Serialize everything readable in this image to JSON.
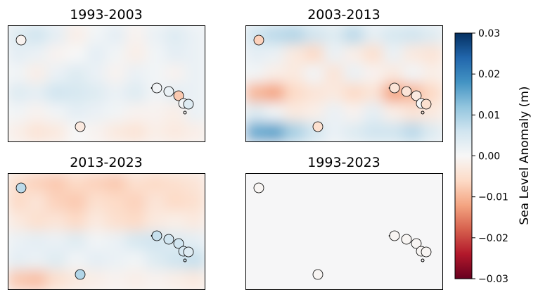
{
  "chart_data": {
    "type": "heatmap",
    "colormap": "RdBu",
    "panels": [
      {
        "title": "1993-2003",
        "field": [
          [
            0.004,
            0.006,
            0.003,
            -0.002,
            0.001,
            0.003,
            -0.001,
            0.002,
            0.004,
            0.002
          ],
          [
            0.003,
            0.002,
            -0.001,
            0.0,
            0.003,
            0.001,
            -0.002,
            0.001,
            0.003,
            0.002
          ],
          [
            0.001,
            -0.002,
            0.002,
            0.004,
            0.002,
            -0.001,
            0.002,
            0.001,
            -0.001,
            0.002
          ],
          [
            0.004,
            0.003,
            0.006,
            0.005,
            0.004,
            0.002,
            0.004,
            0.001,
            0.003,
            0.002
          ],
          [
            0.001,
            -0.001,
            0.001,
            0.003,
            0.002,
            0.001,
            -0.001,
            -0.001,
            -0.002,
            0.002
          ],
          [
            -0.002,
            -0.004,
            -0.003,
            0.0,
            -0.001,
            -0.003,
            -0.004,
            -0.002,
            -0.003,
            -0.002
          ]
        ],
        "stations": [
          -0.001,
          -0.003,
          0.001,
          0.002,
          -0.008,
          0.001,
          0.004
        ]
      },
      {
        "title": "2003-2013",
        "field": [
          [
            0.006,
            0.008,
            0.009,
            0.006,
            0.004,
            0.008,
            0.003,
            0.005,
            0.006,
            0.004
          ],
          [
            0.003,
            0.002,
            -0.003,
            -0.006,
            0.002,
            -0.002,
            -0.005,
            0.002,
            -0.003,
            -0.004
          ],
          [
            0.001,
            -0.002,
            -0.003,
            0.001,
            -0.004,
            0.002,
            -0.001,
            -0.003,
            0.001,
            -0.002
          ],
          [
            -0.01,
            -0.012,
            -0.006,
            -0.004,
            -0.003,
            -0.006,
            -0.004,
            -0.012,
            -0.01,
            -0.006
          ],
          [
            0.004,
            0.001,
            -0.003,
            -0.002,
            0.002,
            -0.001,
            0.003,
            -0.002,
            -0.004,
            -0.003
          ],
          [
            0.015,
            0.016,
            0.01,
            0.006,
            0.002,
            0.004,
            0.006,
            0.006,
            0.008,
            0.004
          ]
        ],
        "stations": [
          -0.007,
          -0.005,
          -0.004,
          -0.004,
          -0.003,
          0.0,
          -0.005
        ]
      },
      {
        "title": "2013-2023",
        "field": [
          [
            -0.005,
            -0.007,
            -0.008,
            -0.006,
            -0.007,
            -0.008,
            -0.005,
            -0.006,
            -0.005,
            -0.004
          ],
          [
            -0.006,
            -0.004,
            -0.007,
            -0.008,
            -0.005,
            -0.006,
            -0.007,
            -0.004,
            -0.006,
            -0.005
          ],
          [
            -0.003,
            -0.005,
            -0.004,
            -0.006,
            -0.003,
            -0.005,
            -0.006,
            -0.003,
            -0.002,
            -0.003
          ],
          [
            0.002,
            0.003,
            0.002,
            0.004,
            0.001,
            0.002,
            0.005,
            0.006,
            0.004,
            0.003
          ],
          [
            0.003,
            0.002,
            0.004,
            0.001,
            0.003,
            0.002,
            0.001,
            0.004,
            0.006,
            0.007
          ],
          [
            -0.008,
            -0.009,
            -0.005,
            -0.003,
            -0.002,
            -0.001,
            -0.002,
            -0.001,
            -0.002,
            -0.003
          ]
        ],
        "stations": [
          0.008,
          0.009,
          0.007,
          0.006,
          0.006,
          0.005,
          0.004
        ]
      },
      {
        "title": "1993-2023",
        "field": [
          [
            0.0002,
            0.0002,
            0.0002,
            0.0002,
            0.0002,
            0.0002,
            0.0002,
            0.0002,
            0.0002,
            0.0002
          ],
          [
            0.0002,
            0.0002,
            0.0002,
            0.0002,
            0.0002,
            0.0002,
            0.0002,
            0.0002,
            0.0002,
            0.0002
          ],
          [
            0.0002,
            0.0002,
            0.0002,
            0.0002,
            0.0002,
            0.0002,
            0.0002,
            0.0002,
            0.0002,
            0.0002
          ],
          [
            0.0002,
            0.0002,
            0.0002,
            0.0002,
            0.0002,
            0.0002,
            0.0002,
            0.0002,
            0.0002,
            0.0002
          ],
          [
            0.0002,
            0.0002,
            0.0002,
            0.0002,
            0.0002,
            0.0002,
            0.0002,
            0.0002,
            0.0002,
            0.0002
          ],
          [
            0.0002,
            0.0002,
            0.0002,
            0.0002,
            0.0002,
            0.0002,
            0.0002,
            0.0002,
            0.0002,
            0.0002
          ]
        ],
        "stations": [
          -0.0005,
          -0.0005,
          -0.0005,
          -0.0005,
          -0.0005,
          -0.0005,
          -0.0005
        ]
      }
    ],
    "colorbar": {
      "label": "Sea Level Anomaly (m)",
      "min": -0.03,
      "max": 0.03,
      "ticks": [
        0.03,
        0.02,
        0.01,
        0.0,
        -0.01,
        -0.02,
        -0.03
      ],
      "tick_labels": [
        "0.03",
        "0.02",
        "0.01",
        "0.00",
        "−0.01",
        "−0.02",
        "−0.03"
      ]
    }
  }
}
